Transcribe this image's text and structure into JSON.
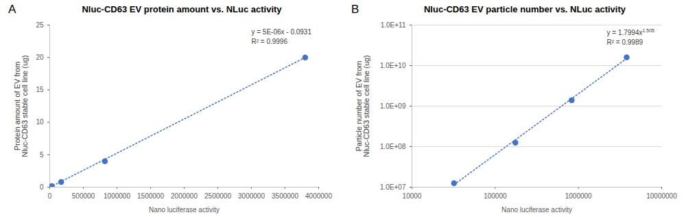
{
  "chart_data": [
    {
      "type": "scatter",
      "panel_label": "A",
      "title": "Nluc-CD63 EV protein amount vs. NLuc activity",
      "x_label": "Nano luciferase activity",
      "y_label": "Protein amount of EV from Nluc-CD63 stable cell line (ug)",
      "xlim": [
        0,
        4000000
      ],
      "xticks": [
        0,
        500000,
        1000000,
        1500000,
        2000000,
        2500000,
        3000000,
        3500000,
        4000000
      ],
      "ylim": [
        0,
        25
      ],
      "yticks": [
        0,
        5,
        10,
        15,
        20,
        25
      ],
      "grid": false,
      "series": [
        {
          "type": "scatter",
          "color": "#4472c4",
          "marker": "circle",
          "x": [
            6000,
            32000,
            170000,
            820000,
            3800000
          ],
          "values": [
            0.032,
            0.16,
            0.8,
            4,
            20
          ]
        },
        {
          "type": "line",
          "color": "#4472c4",
          "line_style": "dotted",
          "x": [
            6000,
            3800000
          ],
          "values": [
            0.0,
            20.0
          ]
        }
      ],
      "annotations": [
        {
          "text": "y = 5E-06x - 0.0931"
        },
        {
          "text": "R² = 0.9996"
        }
      ]
    },
    {
      "type": "scatter",
      "panel_label": "B",
      "title": "Nluc-CD63 EV particle number vs. NLuc activity",
      "x_label": "Nano luciferase activity",
      "y_label": "Particle number of EV from Nluc-CD63 stable cell line (ug)",
      "log": true,
      "xlim": [
        10000,
        10000000
      ],
      "xticks": [
        10000,
        100000,
        1000000,
        10000000
      ],
      "ylim": [
        10000000,
        100000000000
      ],
      "yticks": [
        {
          "value": 10000000,
          "label": "1.0E+07"
        },
        {
          "value": 100000000,
          "label": "1.0E+08"
        },
        {
          "value": 1000000000,
          "label": "1.0E+09"
        },
        {
          "value": 10000000000,
          "label": "1.0E+10"
        },
        {
          "value": 100000000000,
          "label": "1.0E+11"
        }
      ],
      "grid": true,
      "series": [
        {
          "type": "scatter",
          "color": "#4472c4",
          "marker": "circle",
          "x": [
            32000,
            175000,
            830000,
            3800000
          ],
          "values": [
            12500000,
            125000000,
            1400000000,
            16000000000
          ]
        },
        {
          "type": "line",
          "color": "#4472c4",
          "line_style": "dotted",
          "x": [
            32000,
            3800000
          ],
          "values": [
            11500000,
            15000000000
          ]
        }
      ],
      "annotations": [
        {
          "text": "y = 1.7994x",
          "superscript": "1.505"
        },
        {
          "text": "R² = 0.9989"
        }
      ]
    }
  ]
}
